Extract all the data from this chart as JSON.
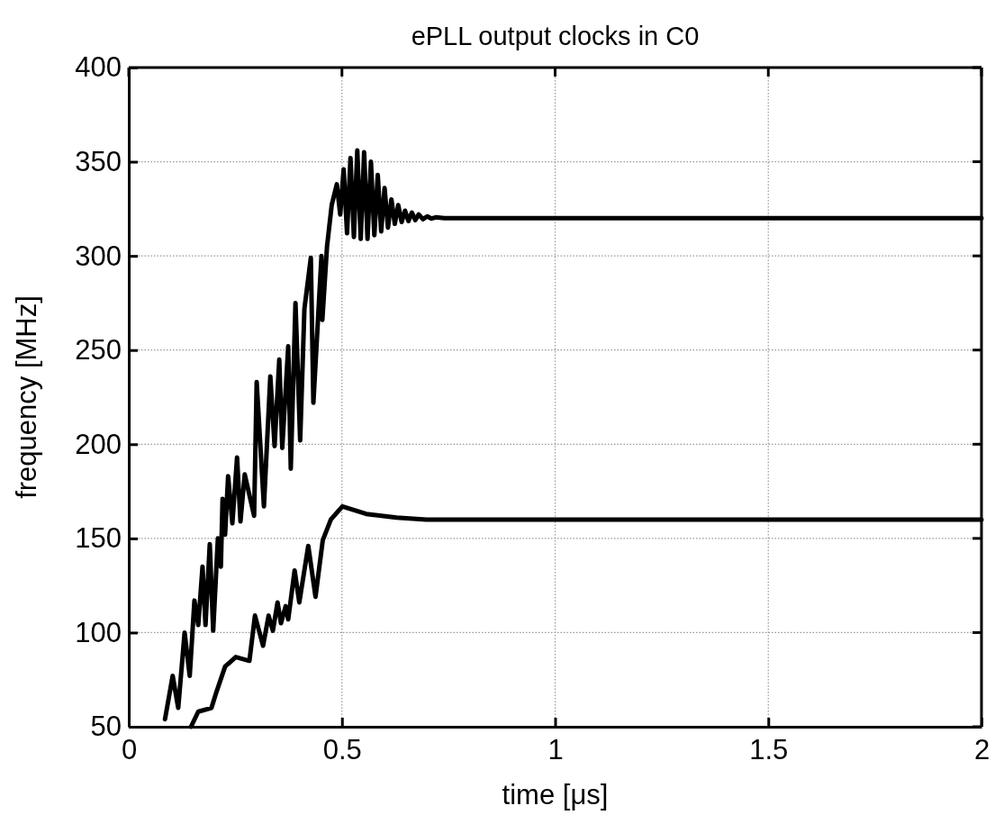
{
  "chart_data": {
    "type": "line",
    "title": "ePLL output clocks in C0",
    "xlabel": "time [μs]",
    "ylabel": "frequency [MHz]",
    "xlim": [
      0,
      2
    ],
    "xticks": [
      0,
      0.5,
      1,
      1.5,
      2
    ],
    "ylim": [
      50,
      400
    ],
    "yticks": [
      50,
      100,
      150,
      200,
      250,
      300,
      350,
      400
    ],
    "grid": true,
    "marker": "none",
    "line_style": "solid",
    "series": [
      {
        "color": "#000000",
        "x": [
          0.085,
          0.103,
          0.116,
          0.131,
          0.143,
          0.154,
          0.163,
          0.173,
          0.18,
          0.19,
          0.198,
          0.209,
          0.216,
          0.22,
          0.226,
          0.233,
          0.243,
          0.254,
          0.262,
          0.272,
          0.294,
          0.3,
          0.317,
          0.332,
          0.342,
          0.353,
          0.36,
          0.374,
          0.38,
          0.391,
          0.402,
          0.412,
          0.427,
          0.433,
          0.452,
          0.454,
          0.465,
          0.476,
          0.488,
          0.496,
          0.504,
          0.512,
          0.52,
          0.528,
          0.536,
          0.544,
          0.552,
          0.56,
          0.568,
          0.576,
          0.584,
          0.592,
          0.6,
          0.608,
          0.616,
          0.624,
          0.632,
          0.64,
          0.648,
          0.656,
          0.664,
          0.672,
          0.68,
          0.69,
          0.7,
          0.71,
          0.72,
          0.74,
          2.0
        ],
        "values": [
          54,
          77,
          60,
          100,
          77,
          117,
          104,
          135,
          104,
          147,
          101,
          150,
          135,
          171,
          152,
          183,
          158,
          193,
          159,
          184,
          162,
          233,
          167,
          236,
          199,
          245,
          198,
          252,
          187,
          275,
          202,
          272,
          299,
          222,
          300,
          266,
          305,
          327,
          338,
          322,
          346,
          312,
          352,
          310,
          356,
          309,
          355,
          309,
          350,
          311,
          343,
          313,
          336,
          315,
          330,
          317,
          327,
          318,
          324,
          318.5,
          323,
          319,
          322,
          319.5,
          321,
          319.8,
          320.5,
          320,
          320
        ]
      },
      {
        "color": "#000000",
        "x": [
          0.146,
          0.163,
          0.194,
          0.205,
          0.226,
          0.251,
          0.283,
          0.296,
          0.315,
          0.328,
          0.338,
          0.349,
          0.357,
          0.368,
          0.374,
          0.389,
          0.4,
          0.421,
          0.438,
          0.455,
          0.474,
          0.501,
          0.557,
          0.628,
          0.698,
          2.0
        ],
        "values": [
          50,
          58,
          60,
          68,
          82,
          87,
          85,
          109,
          93,
          109,
          101,
          116,
          105,
          114,
          107,
          133,
          116,
          146,
          119,
          149,
          160,
          167,
          163,
          161,
          160,
          160
        ]
      }
    ]
  }
}
